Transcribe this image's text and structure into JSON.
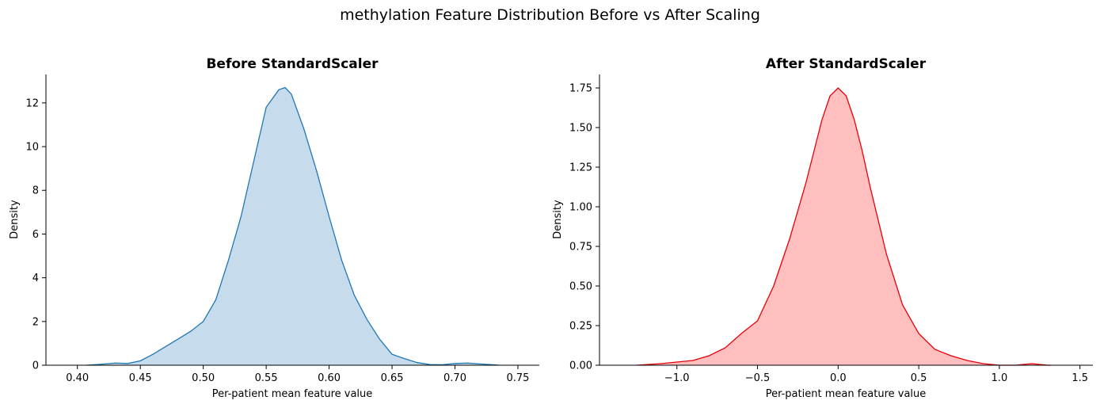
{
  "suptitle": "methylation Feature Distribution Before vs After Scaling",
  "chart_data": [
    {
      "type": "area",
      "title": "Before StandardScaler",
      "xlabel": "Per-patient mean feature value",
      "ylabel": "Density",
      "xlim": [
        0.375,
        0.767
      ],
      "ylim": [
        0,
        13.3
      ],
      "xticks": [
        0.4,
        0.45,
        0.5,
        0.55,
        0.6,
        0.65,
        0.7,
        0.75
      ],
      "xtick_labels": [
        "0.40",
        "0.45",
        "0.50",
        "0.55",
        "0.60",
        "0.65",
        "0.70",
        "0.75"
      ],
      "yticks": [
        0,
        2,
        4,
        6,
        8,
        10,
        12
      ],
      "ytick_labels": [
        "0",
        "2",
        "4",
        "6",
        "8",
        "10",
        "12"
      ],
      "color": "#1f77b4",
      "fill_color": "#c6dcec",
      "grid": false,
      "series": [
        {
          "x": [
            0.407,
            0.42,
            0.43,
            0.44,
            0.45,
            0.46,
            0.47,
            0.48,
            0.49,
            0.5,
            0.51,
            0.52,
            0.53,
            0.54,
            0.55,
            0.56,
            0.565,
            0.57,
            0.58,
            0.59,
            0.6,
            0.61,
            0.62,
            0.63,
            0.64,
            0.65,
            0.66,
            0.67,
            0.68,
            0.69,
            0.7,
            0.71,
            0.72,
            0.73,
            0.735
          ],
          "y": [
            0.0,
            0.05,
            0.1,
            0.08,
            0.2,
            0.5,
            0.85,
            1.2,
            1.55,
            2.0,
            3.0,
            4.8,
            6.8,
            9.3,
            11.8,
            12.6,
            12.7,
            12.4,
            10.8,
            8.9,
            6.8,
            4.8,
            3.2,
            2.1,
            1.2,
            0.5,
            0.3,
            0.12,
            0.03,
            0.02,
            0.08,
            0.1,
            0.06,
            0.02,
            0.0
          ]
        }
      ]
    },
    {
      "type": "area",
      "title": "After StandardScaler",
      "xlabel": "Per-patient mean feature value",
      "ylabel": "Density",
      "xlim": [
        -1.48,
        1.58
      ],
      "ylim": [
        0,
        1.835
      ],
      "xticks": [
        -1.0,
        -0.5,
        0.0,
        0.5,
        1.0,
        1.5
      ],
      "xtick_labels": [
        "−1.0",
        "−0.5",
        "0.0",
        "0.5",
        "1.0",
        "1.5"
      ],
      "yticks": [
        0,
        0.25,
        0.5,
        0.75,
        1.0,
        1.25,
        1.5,
        1.75
      ],
      "ytick_labels": [
        "0.00",
        "0.25",
        "0.50",
        "0.75",
        "1.00",
        "1.25",
        "1.50",
        "1.75"
      ],
      "color": "#e8000b",
      "fill_color": "#ffbfbf",
      "grid": false,
      "series": [
        {
          "x": [
            -1.25,
            -1.1,
            -1.0,
            -0.9,
            -0.8,
            -0.7,
            -0.6,
            -0.5,
            -0.4,
            -0.3,
            -0.2,
            -0.1,
            -0.05,
            0.0,
            0.05,
            0.1,
            0.15,
            0.2,
            0.3,
            0.4,
            0.5,
            0.6,
            0.7,
            0.8,
            0.9,
            1.0,
            1.1,
            1.2,
            1.3,
            1.32
          ],
          "y": [
            0.0,
            0.01,
            0.02,
            0.03,
            0.06,
            0.11,
            0.2,
            0.28,
            0.5,
            0.8,
            1.15,
            1.55,
            1.7,
            1.75,
            1.7,
            1.55,
            1.35,
            1.12,
            0.7,
            0.38,
            0.2,
            0.1,
            0.06,
            0.03,
            0.01,
            0.0,
            0.0,
            0.01,
            0.0,
            0.0
          ]
        }
      ]
    }
  ]
}
